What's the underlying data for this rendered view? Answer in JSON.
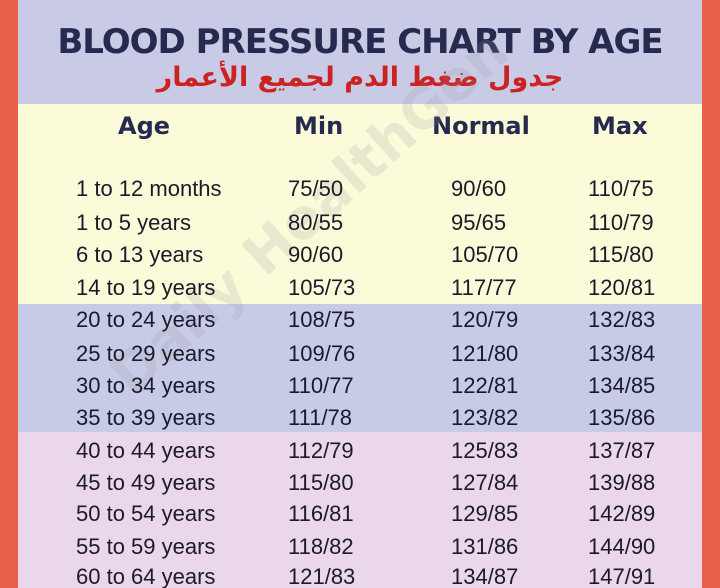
{
  "title": "BLOOD PRESSURE CHART BY AGE",
  "subtitle_ar": "جدول ضغط الدم لجميع الأعمار",
  "watermark": "Daily HealthGen",
  "headers": {
    "age": "Age",
    "min": "Min",
    "normal": "Normal",
    "max": "Max"
  },
  "colors": {
    "frame": "#e8604a",
    "header_band": "#c9cbe6",
    "yellow_band": "#fbfbd9",
    "blue_band": "#c7cbe5",
    "pink_band": "#ead7ea",
    "title": "#262a4e",
    "subtitle": "#cc2222"
  },
  "rows": [
    {
      "age": "1 to 12 months",
      "min": "75/50",
      "normal": "90/60",
      "max": "110/75"
    },
    {
      "age": "1 to 5 years",
      "min": "80/55",
      "normal": "95/65",
      "max": "110/79"
    },
    {
      "age": "6 to 13 years",
      "min": "90/60",
      "normal": "105/70",
      "max": "115/80"
    },
    {
      "age": "14 to 19 years",
      "min": "105/73",
      "normal": "117/77",
      "max": "120/81"
    },
    {
      "age": "20 to 24 years",
      "min": "108/75",
      "normal": "120/79",
      "max": "132/83"
    },
    {
      "age": "25 to 29 years",
      "min": "109/76",
      "normal": "121/80",
      "max": "133/84"
    },
    {
      "age": "30 to 34 years",
      "min": "110/77",
      "normal": "122/81",
      "max": "134/85"
    },
    {
      "age": "35 to 39 years",
      "min": "111/78",
      "normal": "123/82",
      "max": "135/86"
    },
    {
      "age": "40 to 44 years",
      "min": "112/79",
      "normal": "125/83",
      "max": "137/87"
    },
    {
      "age": "45 to 49 years",
      "min": "115/80",
      "normal": "127/84",
      "max": "139/88"
    },
    {
      "age": "50 to 54 years",
      "min": "116/81",
      "normal": "129/85",
      "max": "142/89"
    },
    {
      "age": "55 to 59 years",
      "min": "118/82",
      "normal": "131/86",
      "max": "144/90"
    },
    {
      "age": "60 to 64 years",
      "min": "121/83",
      "normal": "134/87",
      "max": "147/91"
    }
  ]
}
